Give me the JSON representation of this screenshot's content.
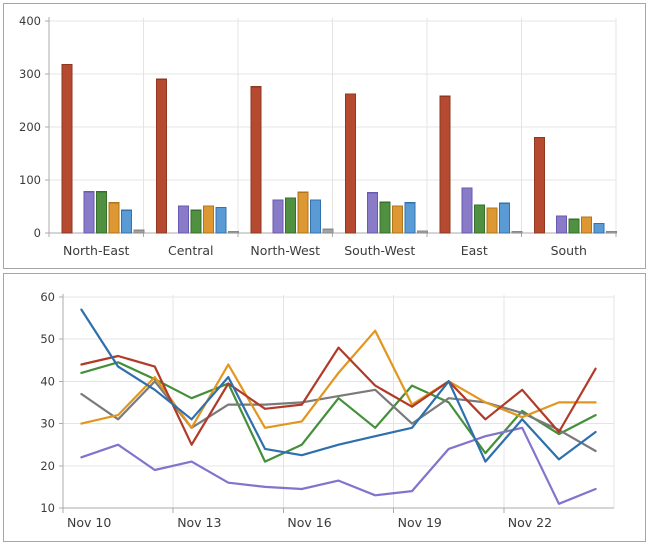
{
  "page": {
    "background": "#ffffff",
    "panel_border_color": "#a6a6a6",
    "gridline_color": "#e4e4e4",
    "axis_color": "#ababab",
    "label_color": "#3b3b3b"
  },
  "chart_data": [
    {
      "type": "bar",
      "title": "",
      "xlabel": "",
      "ylabel": "",
      "ylim": [
        0,
        400
      ],
      "y_ticks": [
        0,
        100,
        200,
        300,
        400
      ],
      "grid": true,
      "legend_position": "none",
      "categories": [
        "North-East",
        "Central",
        "North-West",
        "South-West",
        "East",
        "South"
      ],
      "series": [
        {
          "name": "red-series",
          "fill": "#b54a31",
          "stroke": "#8e3822",
          "values": [
            318,
            290,
            276,
            262,
            258,
            180
          ]
        },
        {
          "name": "purple-series",
          "fill": "#8a7bc8",
          "stroke": "#675ab0",
          "values": [
            78,
            51,
            62,
            76,
            85,
            32
          ]
        },
        {
          "name": "green-series",
          "fill": "#4f9140",
          "stroke": "#36702a",
          "values": [
            78,
            43,
            66,
            58,
            53,
            26
          ]
        },
        {
          "name": "orange-series",
          "fill": "#dd9833",
          "stroke": "#b0741a",
          "values": [
            57,
            51,
            77,
            51,
            47,
            30
          ]
        },
        {
          "name": "blue-series",
          "fill": "#5b9bd5",
          "stroke": "#3373ad",
          "values": [
            43,
            48,
            62,
            57,
            56,
            18
          ]
        },
        {
          "name": "gray-series",
          "fill": "#a3a3a3",
          "stroke": "#8a8a8a",
          "values": [
            5,
            3,
            7,
            4,
            3,
            3
          ]
        }
      ]
    },
    {
      "type": "line",
      "title": "",
      "xlabel": "",
      "ylabel": "",
      "ylim": [
        10,
        60
      ],
      "y_ticks": [
        10,
        20,
        30,
        40,
        50,
        60
      ],
      "grid": true,
      "legend_position": "none",
      "n_points": 15,
      "x_start_date": "Nov 10",
      "x_tick_labels": [
        {
          "text": "Nov 10",
          "slot": 0
        },
        {
          "text": "Nov 13",
          "slot": 3
        },
        {
          "text": "Nov 16",
          "slot": 6
        },
        {
          "text": "Nov 19",
          "slot": 9
        },
        {
          "text": "Nov 22",
          "slot": 12
        }
      ],
      "series": [
        {
          "name": "green-line",
          "stroke": "#44903a",
          "values": [
            42,
            44.5,
            40.5,
            36,
            39.5,
            21,
            25,
            36,
            29,
            39,
            35,
            23,
            33,
            27.5,
            32
          ]
        },
        {
          "name": "gray-line",
          "stroke": "#7a7a7a",
          "values": [
            37,
            31,
            40,
            29,
            34.5,
            34.5,
            35,
            36.5,
            38,
            30,
            36,
            35,
            32.5,
            28.5,
            23.5
          ]
        },
        {
          "name": "orange-line",
          "stroke": "#e2961f",
          "values": [
            30,
            32,
            41,
            29,
            44,
            29,
            30.5,
            42,
            52,
            34.5,
            40,
            35,
            31.5,
            35,
            35
          ]
        },
        {
          "name": "red-line",
          "stroke": "#b03b28",
          "values": [
            44,
            46,
            43.5,
            25,
            39.5,
            33.5,
            34.5,
            48,
            39,
            34,
            40,
            31,
            38,
            28,
            43
          ]
        },
        {
          "name": "purple-line",
          "stroke": "#8273cc",
          "values": [
            22,
            25,
            19,
            21,
            16,
            15,
            14.5,
            16.5,
            13,
            14,
            24,
            27,
            29,
            11,
            14.5
          ]
        },
        {
          "name": "blue-line",
          "stroke": "#2e6fad",
          "values": [
            57,
            43.5,
            38,
            31,
            41,
            24,
            22.5,
            25,
            27,
            29,
            40,
            21,
            31,
            21.5,
            28
          ]
        }
      ]
    }
  ]
}
